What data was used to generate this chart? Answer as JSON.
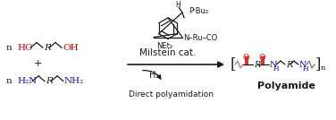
{
  "bg_color": "#ffffff",
  "fig_width": 3.76,
  "fig_height": 1.34,
  "dpi": 100,
  "color_red": "#cc0000",
  "color_blue": "#1a1aaa",
  "color_black": "#1a1a1a",
  "reactant1_n": "n",
  "reactant2_n": "n",
  "plus": "+",
  "catalyst_label": "Milstein cat.",
  "p_label": "PᵗBu₂",
  "ru_label": "N–Ru–CO",
  "net_label": "NEt₂",
  "h_label": "H",
  "h2_label": "H₂",
  "arrow_label": "Direct polyamidation",
  "product_label": "Polyamide"
}
